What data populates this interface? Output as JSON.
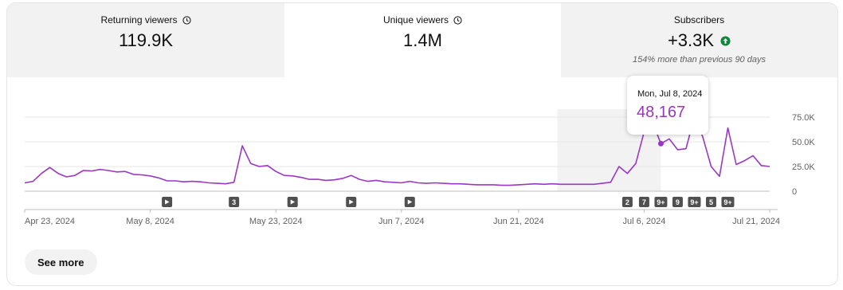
{
  "tabs": [
    {
      "label": "Returning viewers",
      "value": "119.9K",
      "active": false,
      "icon": "clock-icon"
    },
    {
      "label": "Unique viewers",
      "value": "1.4M",
      "active": true,
      "icon": "clock-icon"
    },
    {
      "label": "Subscribers",
      "value": "+3.3K",
      "note": "154% more than previous 90 days",
      "active": false,
      "icon": "arrow-up-circle-icon"
    }
  ],
  "tooltip": {
    "date": "Mon, Jul 8, 2024",
    "value": "48,167"
  },
  "colors": {
    "line": "#9a37c4",
    "up_badge": "#0b8a3c",
    "grid": "#e5e5e5",
    "tab_bg": "#f2f2f2"
  },
  "see_more_label": "See more",
  "chart_data": {
    "type": "line",
    "title": "",
    "xlabel": "",
    "ylabel": "",
    "ylim": [
      0,
      75000
    ],
    "y_ticks": [
      "0",
      "25.0K",
      "50.0K",
      "75.0K"
    ],
    "y_tick_values": [
      0,
      25000,
      50000,
      75000
    ],
    "x_tick_labels": [
      "Apr 23, 2024",
      "May 8, 2024",
      "May 23, 2024",
      "Jun 7, 2024",
      "Jun 21, 2024",
      "Jul 6, 2024",
      "Jul 21, 2024"
    ],
    "x_tick_indices": [
      0,
      15,
      30,
      45,
      59,
      74,
      89
    ],
    "highlight_index": 76,
    "grid": true,
    "series": [
      {
        "values": [
          8500,
          10000,
          18000,
          24000,
          18000,
          14500,
          16000,
          21000,
          20500,
          22000,
          21000,
          19500,
          20000,
          17000,
          16500,
          15500,
          13500,
          10500,
          10500,
          9500,
          10000,
          9500,
          8500,
          8000,
          7500,
          9000,
          46000,
          28000,
          25000,
          26000,
          20000,
          16000,
          15500,
          14000,
          12000,
          12000,
          11000,
          11500,
          13000,
          16000,
          12000,
          10000,
          11000,
          9500,
          9000,
          8500,
          10000,
          8500,
          8000,
          8500,
          8000,
          7500,
          7500,
          7000,
          6500,
          6500,
          6500,
          6000,
          6000,
          6500,
          7000,
          7500,
          7000,
          7500,
          7000,
          7000,
          7000,
          7000,
          7000,
          8000,
          9000,
          25000,
          18000,
          28000,
          60000,
          70000,
          48167,
          53000,
          42000,
          43000,
          75000,
          55000,
          25000,
          15000,
          64000,
          27000,
          31000,
          36000,
          26000,
          25000
        ]
      }
    ],
    "markers": [
      {
        "index": 17,
        "label": ""
      },
      {
        "index": 25,
        "label": "3"
      },
      {
        "index": 32,
        "label": ""
      },
      {
        "index": 39,
        "label": ""
      },
      {
        "index": 46,
        "label": ""
      },
      {
        "index": 72,
        "label": "2"
      },
      {
        "index": 74,
        "label": "7"
      },
      {
        "index": 76,
        "label": "9+"
      },
      {
        "index": 78,
        "label": "9"
      },
      {
        "index": 80,
        "label": "9+"
      },
      {
        "index": 82,
        "label": "5"
      },
      {
        "index": 84,
        "label": "9+"
      }
    ]
  }
}
